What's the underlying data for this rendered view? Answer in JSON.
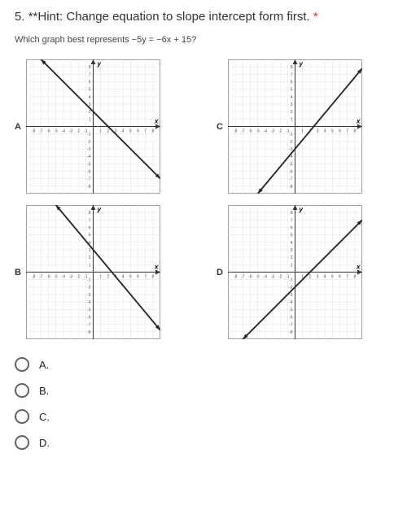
{
  "question": {
    "number": "5.",
    "hint": "**Hint: Change equation to slope intercept form first.",
    "required_marker": "*",
    "subtitle": "Which graph best represents −5y = −6x + 15?"
  },
  "grid": {
    "cells": 18,
    "axis_label_x": "x",
    "axis_label_y": "y",
    "grid_color": "#e2e2e2",
    "axis_color": "#333333",
    "line_color": "#222222",
    "arrow_color": "#222222",
    "hint_text_color": "#333333",
    "asterisk_color": "#d93025",
    "subtitle_color": "#444444",
    "graph_font_size": 7,
    "ticks": [
      "-9",
      "-8",
      "-7",
      "-6",
      "-5",
      "-4",
      "-3",
      "-2",
      "-1",
      "1",
      "2",
      "3",
      "4",
      "5",
      "6",
      "7",
      "8",
      "9"
    ],
    "border_color": "#888888"
  },
  "graphs": [
    {
      "label": "A",
      "slope": -1.0,
      "intercept": 2
    },
    {
      "label": "C",
      "slope": 1.2,
      "intercept": -3
    },
    {
      "label": "B",
      "slope": -1.2,
      "intercept": 3
    },
    {
      "label": "D",
      "slope": 1.0,
      "intercept": -2
    }
  ],
  "options": [
    {
      "label": "A."
    },
    {
      "label": "B."
    },
    {
      "label": "C."
    },
    {
      "label": "D."
    }
  ]
}
